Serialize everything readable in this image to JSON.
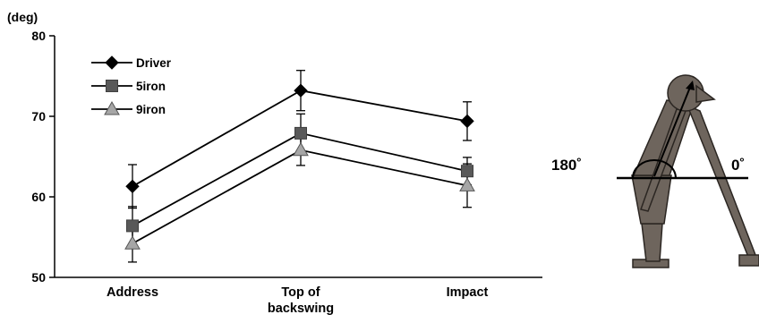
{
  "chart_data": {
    "type": "line",
    "title": "",
    "xlabel": "",
    "ylabel": "(deg)",
    "categories": [
      "Address",
      "Top of\nbackswing",
      "Impact"
    ],
    "ylim": [
      50,
      80
    ],
    "yticks": [
      50,
      60,
      70,
      80
    ],
    "grid": false,
    "legend_position": "top-left",
    "series": [
      {
        "name": "Driver",
        "marker": "diamond",
        "values": [
          61.3,
          73.2,
          69.4
        ],
        "err": [
          2.7,
          2.5,
          2.4
        ]
      },
      {
        "name": "5iron",
        "marker": "square",
        "values": [
          56.4,
          67.9,
          63.2
        ],
        "err": [
          2.4,
          2.4,
          1.7
        ]
      },
      {
        "name": "9iron",
        "marker": "triangle",
        "values": [
          54.2,
          65.8,
          61.4
        ],
        "err": [
          2.3,
          1.9,
          2.7
        ]
      }
    ]
  },
  "diagram": {
    "label_left": "180˚",
    "label_right": "0˚"
  },
  "colors": {
    "line": "#000000",
    "marker_driver": "#000000",
    "marker_5iron": "#595959",
    "marker_9iron": "#a6a6a6",
    "figure_fill": "#6e655d",
    "figure_stroke": "#2b2622"
  }
}
